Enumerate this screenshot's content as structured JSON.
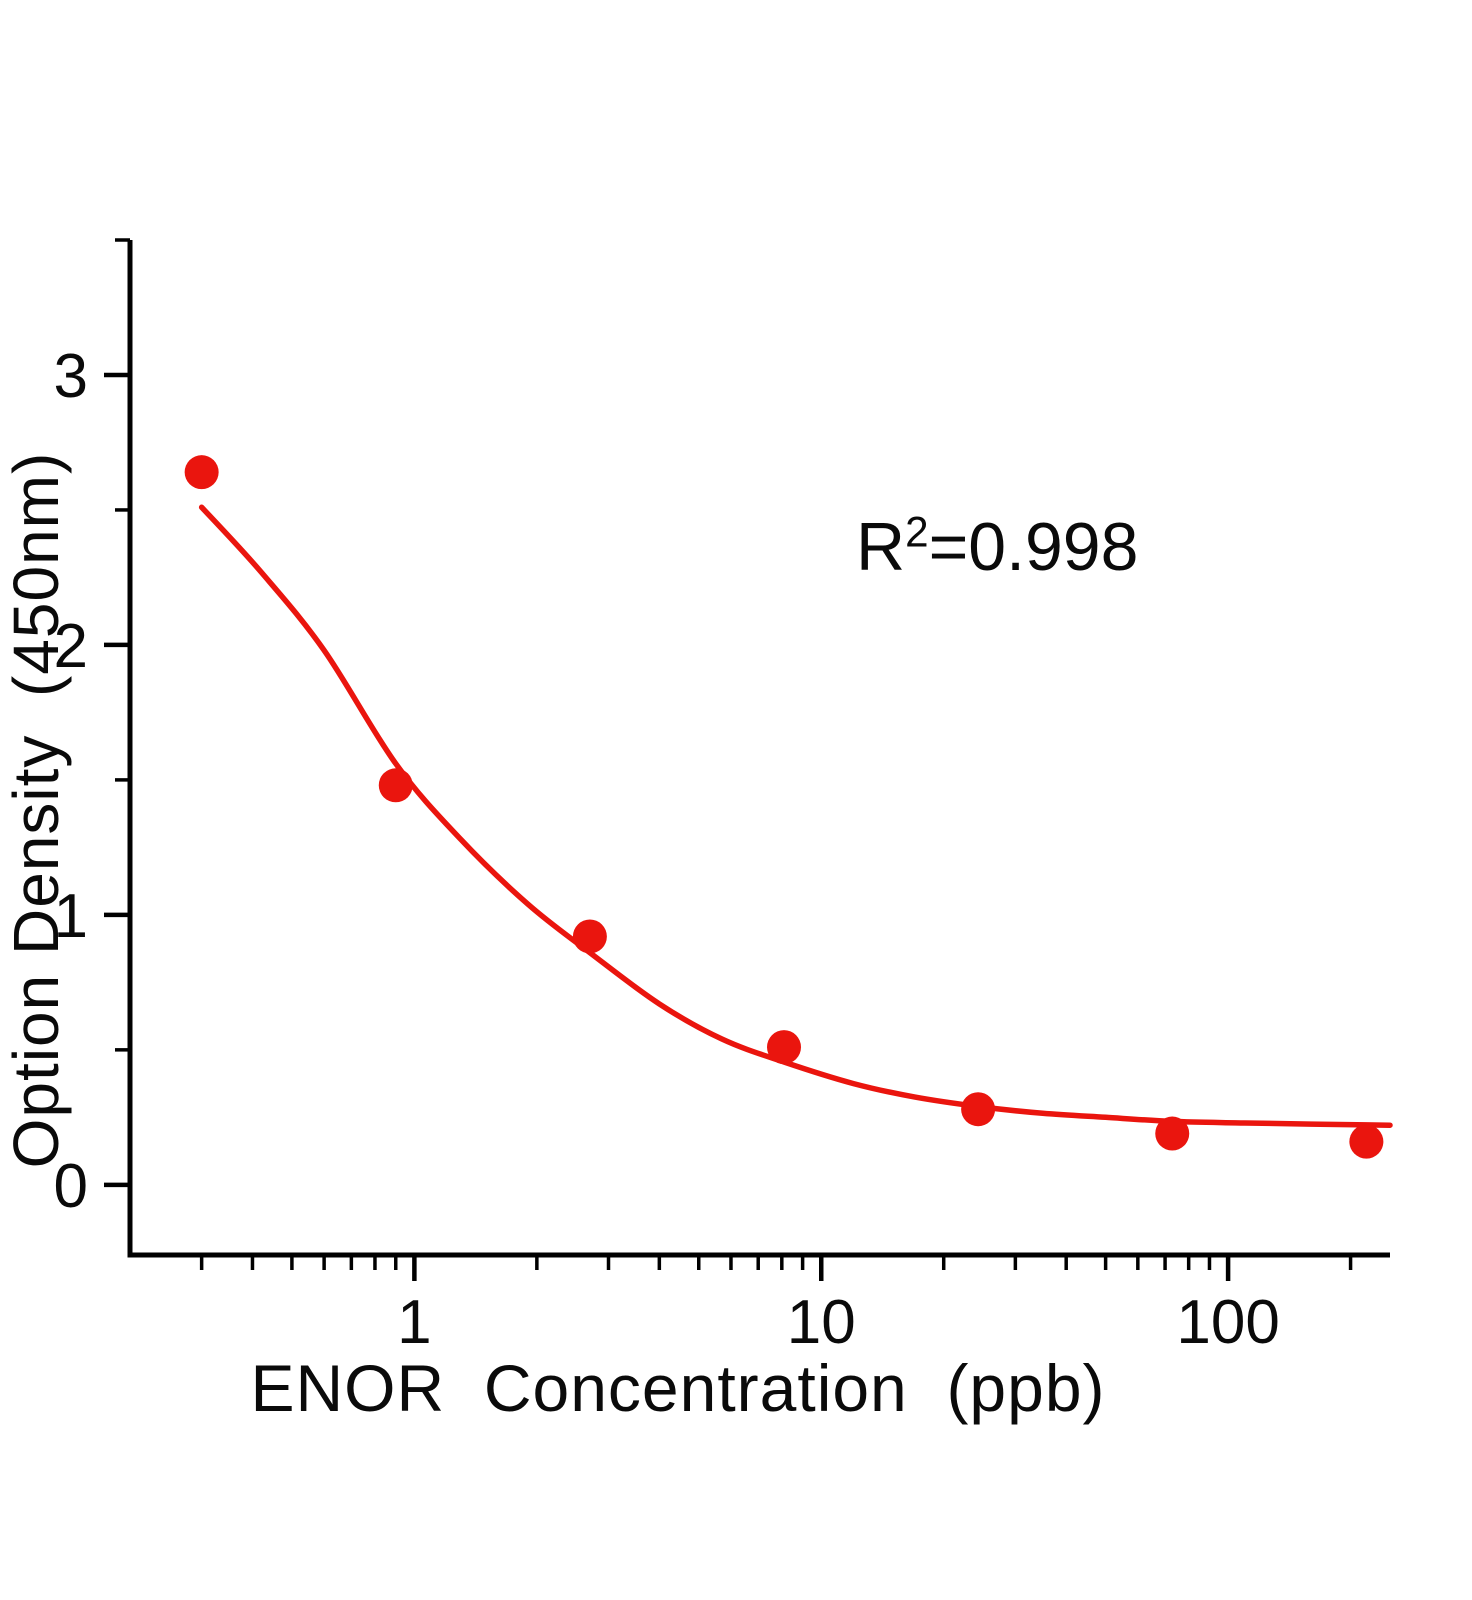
{
  "page": {
    "background": "#ffffff"
  },
  "chart_data": {
    "type": "scatter",
    "title": "",
    "xlabel": "ENOR  Concentration  (ppb)",
    "ylabel": "Option Density  (450nm)",
    "x_scale": "log",
    "y_scale": "linear",
    "xlim": [
      0.2,
      250
    ],
    "ylim": [
      -0.26,
      3.5
    ],
    "grid": false,
    "legend_position": "none",
    "axis_color": "#000000",
    "point_color": "#ea150e",
    "line_color": "#ea150e",
    "x_major_ticks": [
      1,
      10,
      100
    ],
    "x_tick_labels": [
      "1",
      "10",
      "100"
    ],
    "x_minor_ticks": [
      0.3,
      0.4,
      0.5,
      0.6,
      0.7,
      0.8,
      0.9,
      2,
      3,
      4,
      5,
      6,
      7,
      8,
      9,
      20,
      30,
      40,
      50,
      60,
      70,
      80,
      90,
      200
    ],
    "y_major_ticks": [
      0,
      1,
      2,
      3
    ],
    "y_tick_labels": [
      "0",
      "1",
      "2",
      "3"
    ],
    "y_minor_ticks": [
      0.5,
      1.5,
      2.5,
      3.5
    ],
    "annotation": {
      "base": "R",
      "sup": "2",
      "rest": "=0.998"
    },
    "series": [
      {
        "name": "standard-points",
        "type": "scatter",
        "x": [
          0.3,
          0.9,
          2.7,
          8.1,
          24.3,
          72.9,
          218.7
        ],
        "y": [
          2.64,
          1.48,
          0.92,
          0.51,
          0.28,
          0.19,
          0.16
        ]
      },
      {
        "name": "fit-curve",
        "type": "line",
        "x": [
          0.3,
          0.42,
          0.6,
          0.9,
          1.3,
          1.9,
          2.7,
          4.0,
          5.7,
          8.1,
          12,
          17,
          24.3,
          35,
          50,
          72.9,
          110,
          160,
          218.7,
          250
        ],
        "y": [
          2.51,
          2.27,
          1.98,
          1.56,
          1.28,
          1.04,
          0.86,
          0.67,
          0.54,
          0.455,
          0.375,
          0.325,
          0.29,
          0.265,
          0.25,
          0.235,
          0.229,
          0.225,
          0.222,
          0.221
        ]
      }
    ]
  }
}
